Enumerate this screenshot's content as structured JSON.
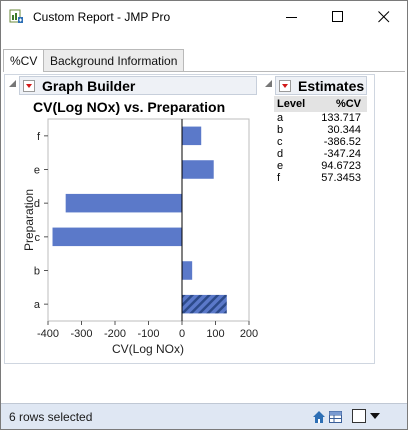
{
  "window": {
    "title": "Custom Report - JMP Pro"
  },
  "tabs": [
    {
      "label": "%CV",
      "active": true
    },
    {
      "label": "Background Information",
      "active": false
    }
  ],
  "graph_builder": {
    "header": "Graph Builder",
    "chart_title": "CV(Log NOx) vs. Preparation"
  },
  "estimates": {
    "header": "Estimates",
    "columns": [
      "Level",
      "%CV"
    ],
    "rows": [
      {
        "level": "a",
        "cv": "133.717"
      },
      {
        "level": "b",
        "cv": "30.344"
      },
      {
        "level": "c",
        "cv": "-386.52"
      },
      {
        "level": "d",
        "cv": "-347.24"
      },
      {
        "level": "e",
        "cv": "94.6723"
      },
      {
        "level": "f",
        "cv": "57.3453"
      }
    ]
  },
  "chart_data": {
    "type": "bar",
    "orientation": "horizontal",
    "title": "CV(Log NOx) vs. Preparation",
    "xlabel": "CV(Log NOx)",
    "ylabel": "Preparation",
    "categories": [
      "f",
      "e",
      "d",
      "c",
      "b",
      "a"
    ],
    "values": [
      57.3453,
      94.6723,
      -347.24,
      -386.52,
      30.344,
      133.717
    ],
    "xlim": [
      -400,
      200
    ],
    "xticks": [
      "-400",
      "-300",
      "-200",
      "-100",
      "0",
      "100",
      "200"
    ],
    "bar_color": "#5b79c9",
    "highlight_category": "a",
    "grid": false,
    "legend": "none"
  },
  "status": {
    "text": "6 rows selected"
  }
}
